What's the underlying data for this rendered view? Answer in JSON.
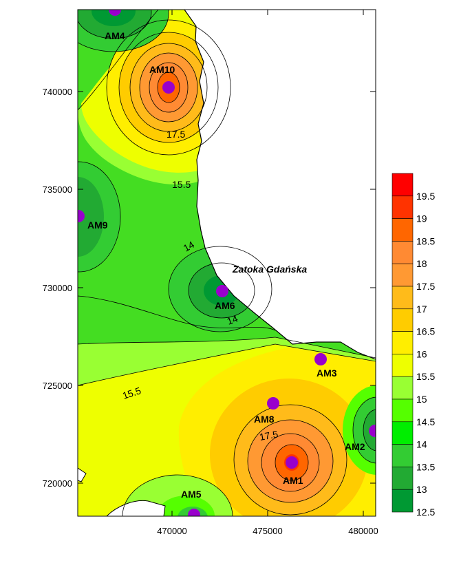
{
  "map": {
    "sea_label": "Zatoka Gdańska",
    "x_ticks": [
      "470000",
      "475000",
      "480000"
    ],
    "y_ticks": [
      "740000",
      "735000",
      "730000",
      "725000",
      "720000"
    ],
    "stations": [
      {
        "name": "AM4"
      },
      {
        "name": "AM10"
      },
      {
        "name": "AM9"
      },
      {
        "name": "AM6"
      },
      {
        "name": "AM3"
      },
      {
        "name": "AM8"
      },
      {
        "name": "AM2"
      },
      {
        "name": "AM1"
      },
      {
        "name": "AM5"
      }
    ],
    "contour_labels": [
      "17.5",
      "15.5",
      "14",
      "14",
      "15.5",
      "17.5"
    ],
    "colors": {
      "water": "#ffffff",
      "station_marker": "#9900cc",
      "contour_line": "#000000"
    }
  },
  "legend": {
    "labels": [
      "19.5",
      "19",
      "18.5",
      "18",
      "17.5",
      "17",
      "16.5",
      "16",
      "15.5",
      "15",
      "14.5",
      "14",
      "13.5",
      "13",
      "12.5"
    ],
    "colors": [
      "#ff0000",
      "#ff3300",
      "#ff6600",
      "#ff8a33",
      "#ff9933",
      "#ffbb1a",
      "#ffcc00",
      "#ffee00",
      "#eeff00",
      "#99ff33",
      "#55ff00",
      "#00ee00",
      "#33cc33",
      "#22aa33",
      "#009933"
    ]
  }
}
